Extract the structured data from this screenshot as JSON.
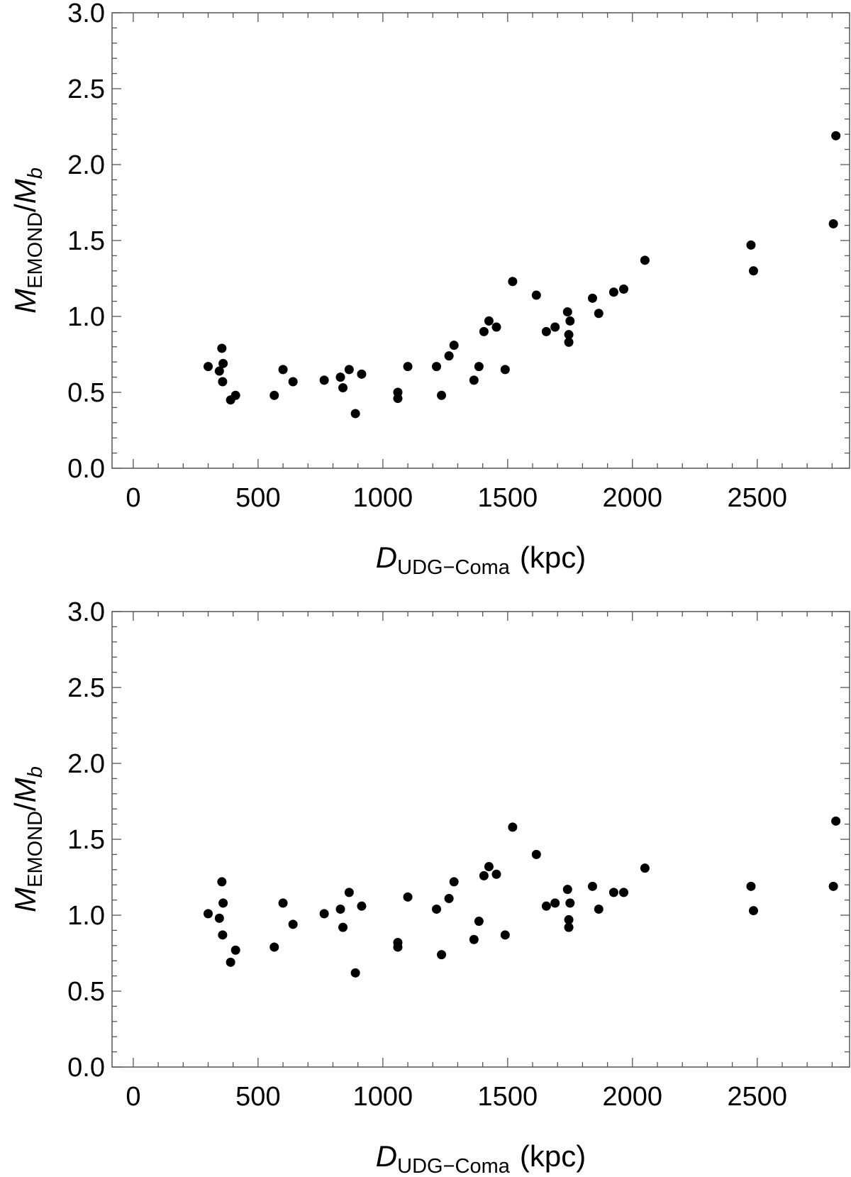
{
  "chart_data": [
    {
      "type": "scatter",
      "title": "",
      "xlabel": {
        "main": "D",
        "sub": "UDG−Coma",
        "unit": "(kpc)"
      },
      "ylabel": {
        "m1": "M",
        "sub1": "EMOND",
        "slash": "/",
        "m2": "M",
        "sub2": "b"
      },
      "xlim": [
        -85,
        2870
      ],
      "ylim": [
        0,
        3
      ],
      "xticks": [
        "0",
        "500",
        "1000",
        "1500",
        "2000",
        "2500"
      ],
      "yticks": [
        "0.0",
        "0.5",
        "1.0",
        "1.5",
        "2.0",
        "2.5",
        "3.0"
      ],
      "grid": false,
      "series": [
        {
          "x": [
            300,
            345,
            355,
            360,
            358,
            390,
            410,
            565,
            600,
            640,
            765,
            830,
            840,
            865,
            890,
            915,
            1060,
            1060,
            1100,
            1215,
            1235,
            1265,
            1285,
            1365,
            1385,
            1405,
            1425,
            1455,
            1490,
            1520,
            1615,
            1655,
            1690,
            1740,
            1745,
            1745,
            1750,
            1840,
            1865,
            1925,
            1965,
            2050,
            2475,
            2485,
            2805,
            2815
          ],
          "y": [
            0.67,
            0.64,
            0.79,
            0.69,
            0.57,
            0.45,
            0.48,
            0.48,
            0.65,
            0.57,
            0.58,
            0.6,
            0.53,
            0.65,
            0.36,
            0.62,
            0.5,
            0.46,
            0.67,
            0.67,
            0.48,
            0.74,
            0.81,
            0.58,
            0.67,
            0.9,
            0.97,
            0.93,
            0.65,
            1.23,
            1.14,
            0.9,
            0.93,
            1.03,
            0.88,
            0.83,
            0.97,
            1.12,
            1.02,
            1.16,
            1.18,
            1.37,
            1.47,
            1.3,
            1.61,
            2.19
          ]
        }
      ]
    },
    {
      "type": "scatter",
      "title": "",
      "xlabel": {
        "main": "D",
        "sub": "UDG−Coma",
        "unit": "(kpc)"
      },
      "ylabel": {
        "m1": "M",
        "sub1": "EMOND",
        "slash": "/",
        "m2": "M",
        "sub2": "b"
      },
      "xlim": [
        -85,
        2870
      ],
      "ylim": [
        0,
        3
      ],
      "xticks": [
        "0",
        "500",
        "1000",
        "1500",
        "2000",
        "2500"
      ],
      "yticks": [
        "0.0",
        "0.5",
        "1.0",
        "1.5",
        "2.0",
        "2.5",
        "3.0"
      ],
      "grid": false,
      "series": [
        {
          "x": [
            300,
            345,
            355,
            360,
            358,
            390,
            410,
            565,
            600,
            640,
            765,
            830,
            840,
            865,
            890,
            915,
            1060,
            1060,
            1100,
            1215,
            1235,
            1265,
            1285,
            1365,
            1385,
            1405,
            1425,
            1455,
            1490,
            1520,
            1615,
            1655,
            1690,
            1740,
            1745,
            1745,
            1750,
            1840,
            1865,
            1925,
            1965,
            2050,
            2475,
            2485,
            2805,
            2815
          ],
          "y": [
            1.01,
            0.98,
            1.22,
            1.08,
            0.87,
            0.69,
            0.77,
            0.79,
            1.08,
            0.94,
            1.01,
            1.04,
            0.92,
            1.15,
            0.62,
            1.06,
            0.82,
            0.79,
            1.12,
            1.04,
            0.74,
            1.11,
            1.22,
            0.84,
            0.96,
            1.26,
            1.32,
            1.27,
            0.87,
            1.58,
            1.4,
            1.06,
            1.08,
            1.17,
            0.97,
            0.92,
            1.08,
            1.19,
            1.04,
            1.15,
            1.15,
            1.31,
            1.19,
            1.03,
            1.19,
            1.62
          ]
        }
      ]
    }
  ]
}
